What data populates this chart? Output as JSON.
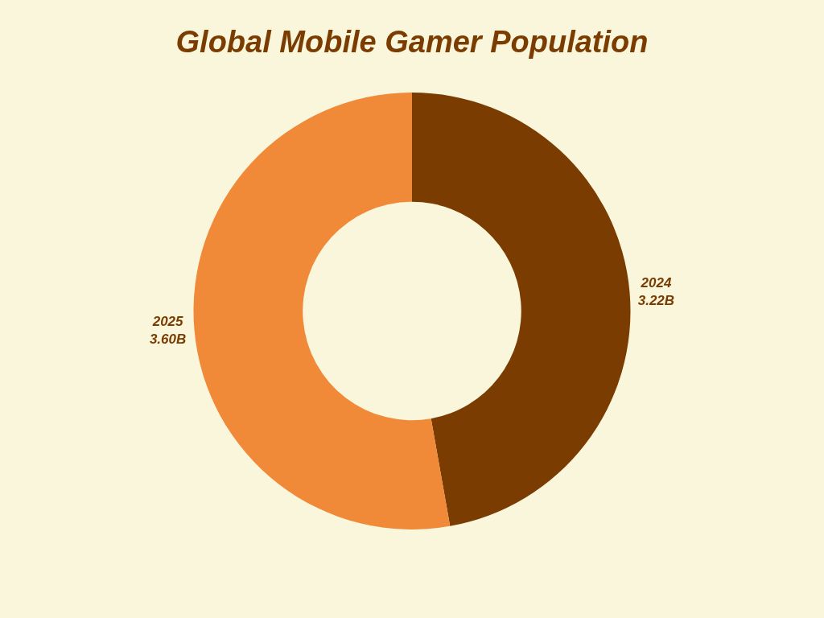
{
  "chart_data": {
    "type": "donut",
    "title": "Global Mobile Gamer Population",
    "categories": [
      "2024",
      "2025"
    ],
    "values": [
      3.22,
      3.6
    ],
    "value_labels": [
      "3.22B",
      "3.60B"
    ],
    "colors": [
      "#7a3c00",
      "#f08a38"
    ],
    "legend": false
  }
}
